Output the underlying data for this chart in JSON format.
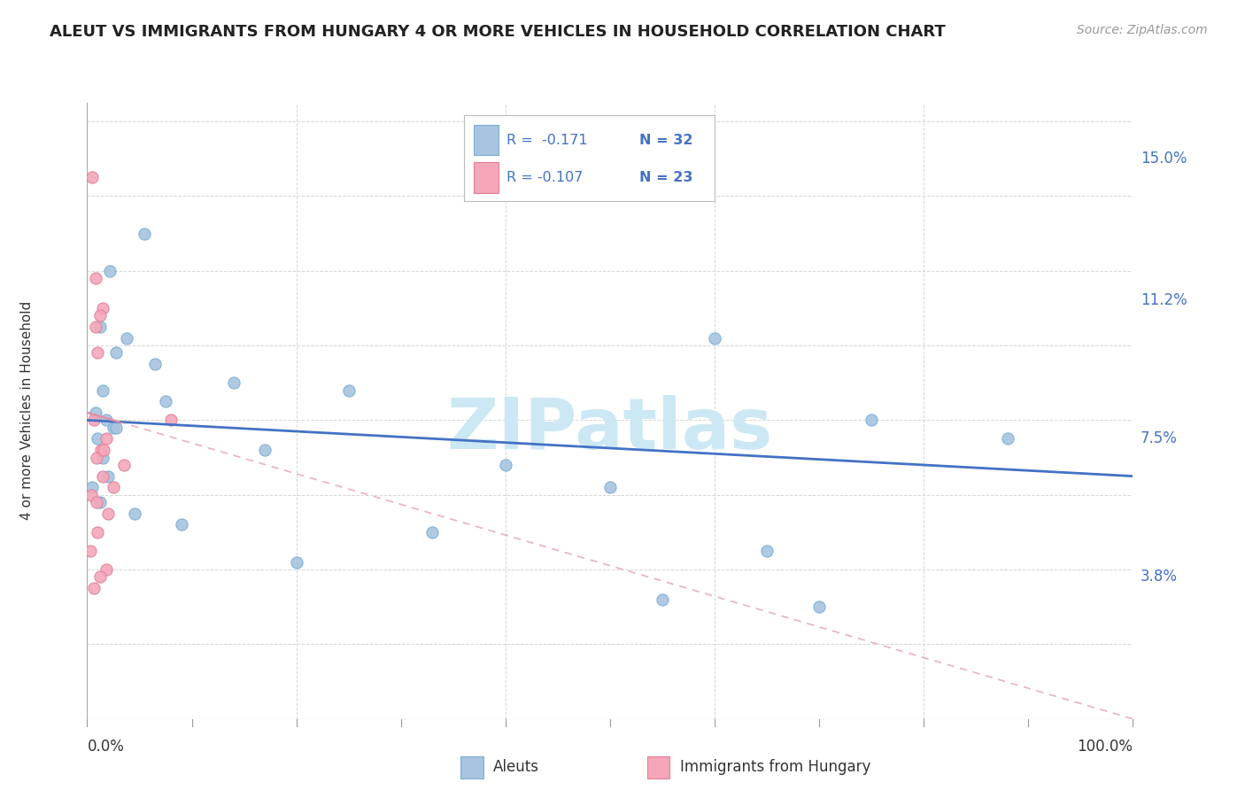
{
  "title": "ALEUT VS IMMIGRANTS FROM HUNGARY 4 OR MORE VEHICLES IN HOUSEHOLD CORRELATION CHART",
  "source": "Source: ZipAtlas.com",
  "ylabel": "4 or more Vehicles in Household",
  "ytick_labels": [
    "3.8%",
    "7.5%",
    "11.2%",
    "15.0%"
  ],
  "ytick_values": [
    3.8,
    7.5,
    11.2,
    15.0
  ],
  "xlim": [
    0.0,
    100.0
  ],
  "ylim": [
    0.0,
    16.5
  ],
  "legend_r_blue": "R =  -0.171",
  "legend_n_blue": "N = 32",
  "legend_r_pink": "R = -0.107",
  "legend_n_pink": "N = 23",
  "legend_label_blue": "Aleuts",
  "legend_label_pink": "Immigrants from Hungary",
  "blue_scatter_x": [
    1.2,
    2.2,
    3.8,
    1.5,
    2.8,
    6.5,
    0.8,
    1.8,
    2.5,
    1.0,
    1.5,
    2.0,
    0.5,
    1.2,
    2.8,
    7.5,
    17.0,
    40.0,
    60.0,
    75.0,
    88.0,
    14.0,
    25.0,
    4.5,
    9.0,
    50.0,
    65.0,
    55.0,
    70.0,
    33.0,
    20.0,
    5.5
  ],
  "blue_scatter_y": [
    10.5,
    12.0,
    10.2,
    8.8,
    9.8,
    9.5,
    8.2,
    8.0,
    7.8,
    7.5,
    7.0,
    6.5,
    6.2,
    5.8,
    7.8,
    8.5,
    7.2,
    6.8,
    10.2,
    8.0,
    7.5,
    9.0,
    8.8,
    5.5,
    5.2,
    6.2,
    4.5,
    3.2,
    3.0,
    5.0,
    4.2,
    13.0
  ],
  "pink_scatter_x": [
    0.5,
    0.8,
    1.5,
    1.2,
    0.8,
    1.0,
    0.6,
    1.8,
    1.3,
    0.9,
    1.5,
    0.4,
    2.0,
    1.0,
    0.3,
    1.8,
    1.2,
    2.5,
    8.0,
    3.5,
    0.6,
    1.6,
    0.9
  ],
  "pink_scatter_y": [
    14.5,
    11.8,
    11.0,
    10.8,
    10.5,
    9.8,
    8.0,
    7.5,
    7.2,
    7.0,
    6.5,
    6.0,
    5.5,
    5.0,
    4.5,
    4.0,
    3.8,
    6.2,
    8.0,
    6.8,
    3.5,
    7.2,
    5.8
  ],
  "blue_line_x0": 0.0,
  "blue_line_x1": 100.0,
  "blue_line_y0": 8.0,
  "blue_line_y1": 6.5,
  "pink_line_x0": 0.0,
  "pink_line_x1": 100.0,
  "pink_line_y0": 8.2,
  "pink_line_y1": 0.0,
  "blue_dot_color": "#a8c4e0",
  "blue_dot_edge": "#7aaed4",
  "pink_dot_color": "#f4a7b9",
  "pink_dot_edge": "#e08098",
  "blue_line_color": "#4472c4",
  "pink_line_color": "#e090a8",
  "watermark_text": "ZIPatlas",
  "watermark_color": "#cce8f4",
  "bg_color": "#ffffff",
  "grid_color": "#cccccc",
  "tick_label_color": "#4472c4",
  "title_color": "#222222",
  "source_color": "#999999"
}
